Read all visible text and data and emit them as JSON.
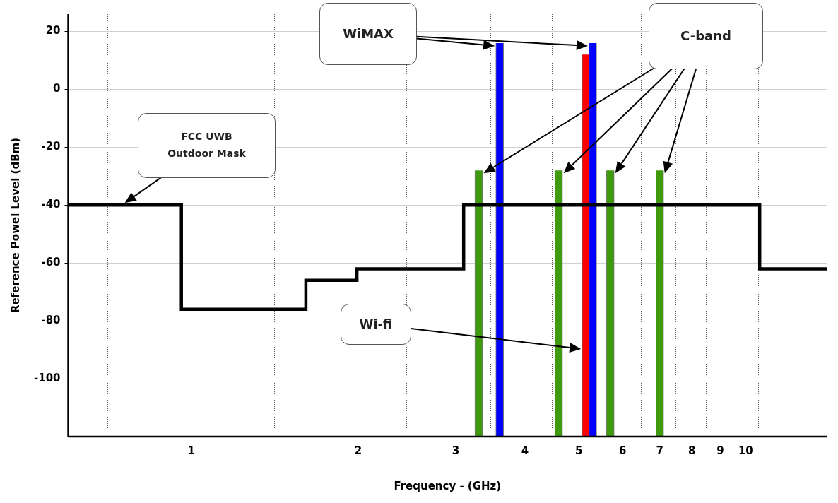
{
  "chart_data": {
    "type": "bar",
    "xlabel": "Frequency - (GHz)",
    "ylabel": "Reference Powel Level (dBm)",
    "xlim": [
      0.6,
      14
    ],
    "xticks": [
      1,
      2,
      3,
      4,
      5,
      6,
      7,
      8,
      9,
      10
    ],
    "ylim": [
      -120,
      26
    ],
    "yticks": [
      -100,
      -80,
      -60,
      -40,
      -20,
      0,
      20
    ],
    "log": "x",
    "grid": true,
    "legend": false,
    "annotations": [
      "FCC UWB Outdoor Mask",
      "C-band",
      "WiMAX",
      "Wi-fi"
    ],
    "series": [
      {
        "type": "step",
        "color": "#000000",
        "x": [
          0.6,
          0.96,
          1.61,
          1.99,
          3.1,
          10.6,
          14
        ],
        "values": [
          -40,
          -76,
          -66,
          -62,
          -40,
          -62,
          -62
        ]
      },
      {
        "color": "#3f9a0e",
        "x": [
          3.3,
          4.6,
          5.7,
          7
        ],
        "base": [
          -120,
          -120,
          -120,
          -120
        ],
        "values": [
          92,
          92,
          92,
          92
        ]
      },
      {
        "color": "#0000ff",
        "x": [
          3.6,
          5.3
        ],
        "base": [
          -120,
          -120
        ],
        "values": [
          136,
          136
        ]
      },
      {
        "color": "#ff0000",
        "x": [
          5.15
        ],
        "base": [
          -120
        ],
        "values": [
          132
        ]
      }
    ]
  }
}
